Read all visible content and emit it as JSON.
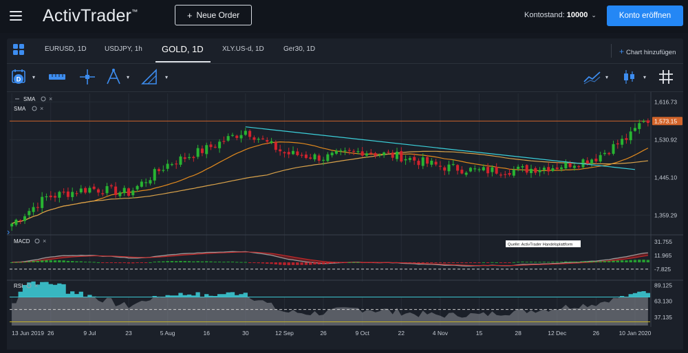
{
  "app": {
    "logo": "ActivTrader",
    "logo_mark": "™",
    "new_order": "Neue Order",
    "balance_label": "Kontostand:",
    "balance_value": "10000",
    "open_account": "Konto eröffnen"
  },
  "tabs": [
    {
      "label": "EURUSD, 1D"
    },
    {
      "label": "USDJPY, 1h"
    },
    {
      "label": "GOLD, 1D"
    },
    {
      "label": "XLY.US-d, 1D"
    },
    {
      "label": "Ger30, 1D"
    }
  ],
  "add_chart": "Chart hinzufügen",
  "toolbar": {
    "icons": [
      "calendar-icon",
      "measure-icon",
      "crosshair-icon",
      "pitchfork-icon",
      "triangle-ruler-icon",
      "line-chart-icon",
      "candle-icon",
      "grid-icon"
    ]
  },
  "colors": {
    "bull": "#28b432",
    "bear": "#d2232d",
    "sma_fast": "#e28a1e",
    "sma_slow": "#d9a24a",
    "trendline": "#3cd2dc",
    "horizontal": "#d2642a",
    "macd_line": "#9a9a9a",
    "signal_line": "#cc2a2a",
    "rsi_line": "#bfbfbf",
    "rsi_upper": "#3cc8d2",
    "rsi_lower": "#c8b428",
    "accent": "#2487f5"
  },
  "chart_data": {
    "type": "candlestick",
    "symbol": "GOLD, 1D",
    "indicators": {
      "price": [
        "SMA",
        "SMA"
      ],
      "macd_label": "MACD",
      "rsi_label": "RSI"
    },
    "source_note": "Quelle: ActivTrader Handelsplattform",
    "price_axis": {
      "ticks": [
        "1,616.73",
        "1,530.92",
        "1,445.10",
        "1,359.29"
      ],
      "tick_values": [
        1616.73,
        1530.92,
        1445.1,
        1359.29
      ],
      "ylim": [
        1316,
        1636
      ],
      "current_price": "1,573.15",
      "current_value": 1573.15
    },
    "macd_axis": {
      "ticks": [
        "31.755",
        "11.965",
        "-7.825"
      ],
      "tick_values": [
        31.755,
        11.965,
        -7.825
      ],
      "ylim": [
        -22,
        40
      ]
    },
    "rsi_axis": {
      "ticks": [
        "89.125",
        "63.130",
        "37.135"
      ],
      "tick_values": [
        89.125,
        63.13,
        37.135
      ],
      "ylim": [
        24,
        95
      ],
      "upper_level": 70,
      "lower_level": 30
    },
    "x_axis": {
      "labels": [
        "13 Jun 2019",
        "26",
        "9 Jul",
        "23",
        "5 Aug",
        "16",
        "30",
        "12 Sep",
        "26",
        "9 Oct",
        "22",
        "4 Nov",
        "15",
        "28",
        "12 Dec",
        "26",
        "10 Jan 2020"
      ],
      "label_index": [
        0,
        9,
        18,
        27,
        36,
        45,
        54,
        63,
        72,
        81,
        90,
        99,
        108,
        117,
        126,
        135,
        144
      ]
    },
    "trendline_points": [
      {
        "x": "30",
        "y": 1560
      },
      {
        "x": "10 Jan 2020",
        "y": 1463
      }
    ],
    "horizontal_level": 1573.15,
    "path": [
      [
        0,
        1340
      ],
      [
        8,
        1400
      ],
      [
        18,
        1420
      ],
      [
        27,
        1410
      ],
      [
        36,
        1475
      ],
      [
        45,
        1510
      ],
      [
        54,
        1552
      ],
      [
        63,
        1500
      ],
      [
        72,
        1490
      ],
      [
        81,
        1505
      ],
      [
        90,
        1492
      ],
      [
        99,
        1470
      ],
      [
        108,
        1460
      ],
      [
        117,
        1462
      ],
      [
        126,
        1470
      ],
      [
        135,
        1490
      ],
      [
        143,
        1540
      ],
      [
        146,
        1578
      ],
      [
        147,
        1572
      ]
    ]
  }
}
